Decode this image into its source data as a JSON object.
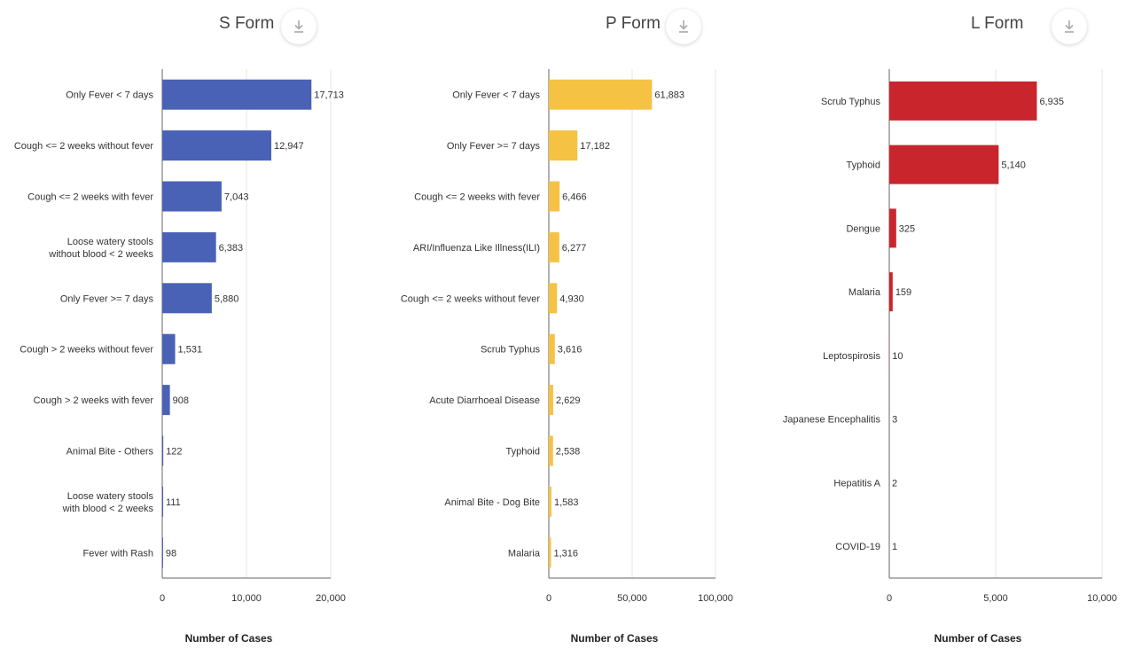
{
  "colors": {
    "s_form": "#4a62b5",
    "p_form": "#f6c243",
    "l_form": "#c9252c",
    "grid": "#e6e6e6",
    "axis": "#666666"
  },
  "icons": {
    "download": "download-icon"
  },
  "charts": [
    {
      "key": "s",
      "title": "S Form",
      "color": "#4a62b5",
      "chart_data": {
        "type": "bar",
        "orientation": "horizontal",
        "categories": [
          [
            "Only Fever < 7 days"
          ],
          [
            "Cough <= 2 weeks without fever"
          ],
          [
            "Cough <= 2 weeks with fever"
          ],
          [
            "Loose watery stools",
            "without blood < 2 weeks"
          ],
          [
            "Only Fever >= 7 days"
          ],
          [
            "Cough > 2 weeks without fever"
          ],
          [
            "Cough > 2 weeks with fever"
          ],
          [
            "Animal Bite - Others"
          ],
          [
            "Loose watery stools",
            "with blood < 2 weeks"
          ],
          [
            "Fever with Rash"
          ]
        ],
        "values": [
          17713,
          12947,
          7043,
          6383,
          5880,
          1531,
          908,
          122,
          111,
          98
        ],
        "value_labels": [
          "17,713",
          "12,947",
          "7,043",
          "6,383",
          "5,880",
          "1,531",
          "908",
          "122",
          "111",
          "98"
        ],
        "xlim": [
          0,
          20000
        ],
        "ticks": [
          0,
          10000,
          20000
        ],
        "tick_labels": [
          "0",
          "10,000",
          "20,000"
        ],
        "xlabel": "Number of Cases",
        "grid": true
      }
    },
    {
      "key": "p",
      "title": "P Form",
      "color": "#f6c243",
      "chart_data": {
        "type": "bar",
        "orientation": "horizontal",
        "categories": [
          [
            "Only Fever < 7 days"
          ],
          [
            "Only Fever >= 7 days"
          ],
          [
            "Cough <= 2 weeks with fever"
          ],
          [
            "ARI/Influenza Like Illness(ILI)"
          ],
          [
            "Cough <= 2 weeks without fever"
          ],
          [
            "Scrub Typhus"
          ],
          [
            "Acute Diarrhoeal Disease"
          ],
          [
            "Typhoid"
          ],
          [
            "Animal Bite - Dog Bite"
          ],
          [
            "Malaria"
          ]
        ],
        "values": [
          61883,
          17182,
          6466,
          6277,
          4930,
          3616,
          2629,
          2538,
          1583,
          1316
        ],
        "value_labels": [
          "61,883",
          "17,182",
          "6,466",
          "6,277",
          "4,930",
          "3,616",
          "2,629",
          "2,538",
          "1,583",
          "1,316"
        ],
        "xlim": [
          0,
          100000
        ],
        "ticks": [
          0,
          50000,
          100000
        ],
        "tick_labels": [
          "0",
          "50,000",
          "100,000"
        ],
        "xlabel": "Number of Cases",
        "grid": true
      }
    },
    {
      "key": "l",
      "title": "L Form",
      "color": "#c9252c",
      "chart_data": {
        "type": "bar",
        "orientation": "horizontal",
        "categories": [
          [
            "Scrub Typhus"
          ],
          [
            "Typhoid"
          ],
          [
            "Dengue"
          ],
          [
            "Malaria"
          ],
          [
            "Leptospirosis"
          ],
          [
            "Japanese Encephalitis"
          ],
          [
            "Hepatitis A"
          ],
          [
            "COVID-19"
          ]
        ],
        "values": [
          6935,
          5140,
          325,
          159,
          10,
          3,
          2,
          1
        ],
        "value_labels": [
          "6,935",
          "5,140",
          "325",
          "159",
          "10",
          "3",
          "2",
          "1"
        ],
        "xlim": [
          0,
          10000
        ],
        "ticks": [
          0,
          5000,
          10000
        ],
        "tick_labels": [
          "0",
          "5,000",
          "10,000"
        ],
        "xlabel": "Number of Cases",
        "grid": true
      }
    }
  ]
}
